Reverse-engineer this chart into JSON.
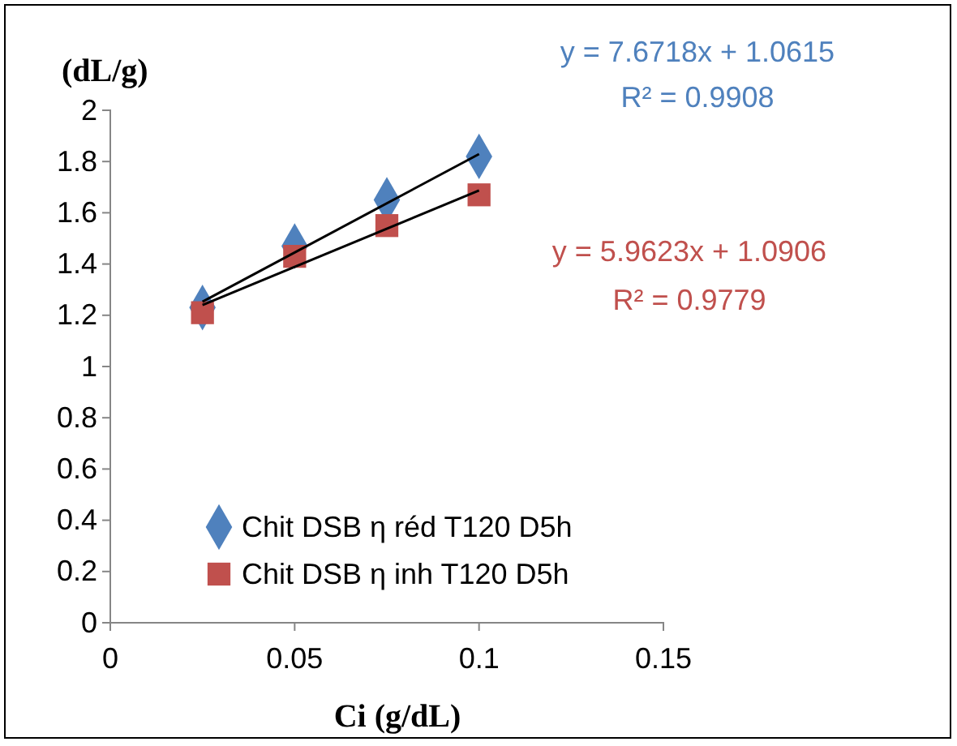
{
  "chart_data": {
    "type": "scatter",
    "xlabel": "Ci (g/dL)",
    "ylabel": "(dL/g)",
    "annotations": [
      "y = 7.6718x + 1.0615",
      "R² = 0.9908",
      "y = 5.9623x + 1.0906",
      "R² = 0.9779"
    ],
    "series": [
      {
        "name": "Chit DSB η réd T120 D5h",
        "color": "#4f81bd",
        "marker": "diamond",
        "x": [
          0.025,
          0.05,
          0.075,
          0.1
        ],
        "values": [
          1.23,
          1.47,
          1.65,
          1.82
        ]
      },
      {
        "name": "Chit DSB η inh T120 D5h",
        "color": "#c0504d",
        "marker": "square",
        "x": [
          0.025,
          0.05,
          0.075,
          0.1
        ],
        "values": [
          1.21,
          1.43,
          1.55,
          1.67
        ]
      },
      {
        "type": "line",
        "color": "#000000",
        "marker": "none",
        "x": [
          0.025,
          0.1
        ],
        "values": [
          1.253,
          1.829
        ]
      },
      {
        "type": "line",
        "color": "#000000",
        "marker": "none",
        "x": [
          0.025,
          0.1
        ],
        "values": [
          1.24,
          1.687
        ]
      }
    ],
    "xlim": [
      0,
      0.15
    ],
    "xticks": [
      0,
      0.05,
      0.1,
      0.15
    ],
    "ylim": [
      0,
      2
    ],
    "yticks": [
      0,
      0.2,
      0.4,
      0.6,
      0.8,
      1,
      1.2,
      1.4,
      1.6,
      1.8,
      2
    ],
    "grid": false,
    "legend": "bottom left"
  }
}
